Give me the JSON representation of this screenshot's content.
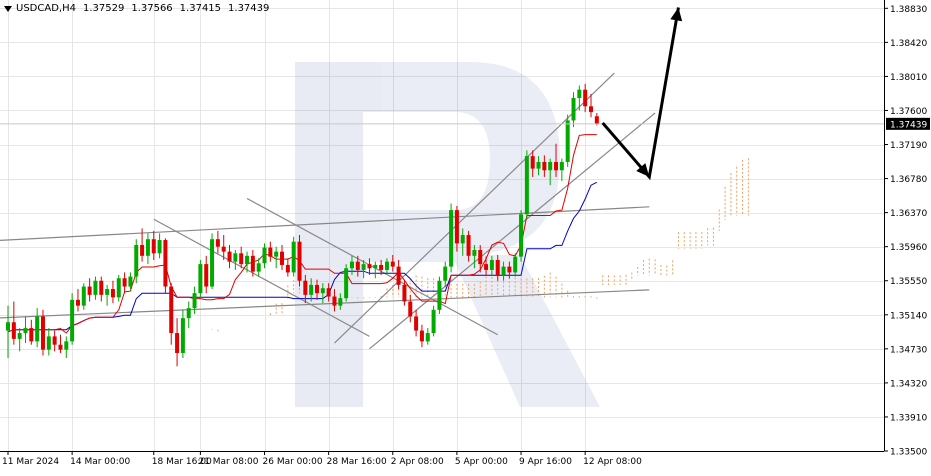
{
  "header": {
    "symbol": "USDCAD,H4",
    "open": "1.37529",
    "high": "1.37566",
    "low": "1.37415",
    "close": "1.37439"
  },
  "chart_data": {
    "type": "candlestick",
    "symbol": "USDCAD",
    "timeframe": "H4",
    "y_ticks": [
      "1.38830",
      "1.38420",
      "1.38010",
      "1.37600",
      "1.37190",
      "1.36780",
      "1.36370",
      "1.35960",
      "1.35550",
      "1.35140",
      "1.34730",
      "1.34320",
      "1.33910",
      "1.33500"
    ],
    "ylim": [
      1.335,
      1.3893
    ],
    "x_tick_labels": [
      "11 Mar 2024",
      "14 Mar 00:00",
      "18 Mar 16:00",
      "21 Mar 08:00",
      "26 Mar 00:00",
      "28 Mar 16:00",
      "2 Apr 08:00",
      "5 Apr 00:00",
      "9 Apr 16:00",
      "12 Apr 08:00"
    ],
    "x_tick_index": [
      0,
      11,
      25,
      33,
      44,
      55,
      66,
      77,
      88,
      99
    ],
    "current_price": "1.37439",
    "current_price_value": 1.37439,
    "candles": [
      [
        1.3495,
        1.3525,
        1.3462,
        1.3505
      ],
      [
        1.3505,
        1.353,
        1.3478,
        1.3485
      ],
      [
        1.3485,
        1.3498,
        1.347,
        1.3492
      ],
      [
        1.3492,
        1.3512,
        1.348,
        1.3498
      ],
      [
        1.3498,
        1.3508,
        1.3478,
        1.3482
      ],
      [
        1.3482,
        1.3522,
        1.3475,
        1.3512
      ],
      [
        1.3512,
        1.352,
        1.3465,
        1.3472
      ],
      [
        1.3472,
        1.3498,
        1.3465,
        1.3488
      ],
      [
        1.3488,
        1.3495,
        1.347,
        1.3478
      ],
      [
        1.3478,
        1.349,
        1.3468,
        1.3472
      ],
      [
        1.3472,
        1.3488,
        1.3462,
        1.3482
      ],
      [
        1.3482,
        1.354,
        1.3478,
        1.3532
      ],
      [
        1.3532,
        1.3545,
        1.3518,
        1.3525
      ],
      [
        1.3525,
        1.3552,
        1.352,
        1.3548
      ],
      [
        1.3548,
        1.3558,
        1.353,
        1.3538
      ],
      [
        1.3538,
        1.356,
        1.3532,
        1.3555
      ],
      [
        1.3555,
        1.356,
        1.353,
        1.3538
      ],
      [
        1.3538,
        1.355,
        1.3525,
        1.3545
      ],
      [
        1.3545,
        1.3555,
        1.3528,
        1.3535
      ],
      [
        1.3535,
        1.3562,
        1.353,
        1.3558
      ],
      [
        1.3558,
        1.3565,
        1.354,
        1.3548
      ],
      [
        1.3548,
        1.3565,
        1.3545,
        1.356
      ],
      [
        1.356,
        1.3605,
        1.3552,
        1.3598
      ],
      [
        1.3598,
        1.3618,
        1.3578,
        1.3585
      ],
      [
        1.3585,
        1.3612,
        1.3575,
        1.3605
      ],
      [
        1.3605,
        1.3615,
        1.358,
        1.3588
      ],
      [
        1.3588,
        1.3612,
        1.3582,
        1.3604
      ],
      [
        1.3604,
        1.3606,
        1.354,
        1.3548
      ],
      [
        1.3548,
        1.3552,
        1.3478,
        1.3492
      ],
      [
        1.3492,
        1.351,
        1.3452,
        1.3468
      ],
      [
        1.3468,
        1.352,
        1.3462,
        1.351
      ],
      [
        1.351,
        1.353,
        1.3498,
        1.3522
      ],
      [
        1.3522,
        1.3548,
        1.3515,
        1.354
      ],
      [
        1.354,
        1.358,
        1.3535,
        1.3575
      ],
      [
        1.3575,
        1.3585,
        1.354,
        1.3548
      ],
      [
        1.3548,
        1.3612,
        1.3545,
        1.3605
      ],
      [
        1.3605,
        1.3615,
        1.3588,
        1.3596
      ],
      [
        1.3596,
        1.361,
        1.358,
        1.359
      ],
      [
        1.359,
        1.3598,
        1.357,
        1.3578
      ],
      [
        1.3578,
        1.3592,
        1.3568,
        1.3588
      ],
      [
        1.3588,
        1.3596,
        1.357,
        1.3575
      ],
      [
        1.3575,
        1.359,
        1.3565,
        1.3585
      ],
      [
        1.3585,
        1.3592,
        1.356,
        1.3566
      ],
      [
        1.3566,
        1.3582,
        1.356,
        1.3576
      ],
      [
        1.3576,
        1.36,
        1.357,
        1.3595
      ],
      [
        1.3595,
        1.3602,
        1.3578,
        1.3584
      ],
      [
        1.3584,
        1.3596,
        1.357,
        1.359
      ],
      [
        1.359,
        1.3598,
        1.3568,
        1.3574
      ],
      [
        1.3574,
        1.3582,
        1.356,
        1.3565
      ],
      [
        1.3565,
        1.3608,
        1.356,
        1.3602
      ],
      [
        1.3602,
        1.361,
        1.3548,
        1.3555
      ],
      [
        1.3555,
        1.3562,
        1.3528,
        1.3538
      ],
      [
        1.3538,
        1.3558,
        1.353,
        1.355
      ],
      [
        1.355,
        1.3556,
        1.3532,
        1.354
      ],
      [
        1.354,
        1.3552,
        1.3528,
        1.3546
      ],
      [
        1.3546,
        1.3552,
        1.353,
        1.3536
      ],
      [
        1.3536,
        1.3545,
        1.3518,
        1.3525
      ],
      [
        1.3525,
        1.354,
        1.352,
        1.3534
      ],
      [
        1.3534,
        1.3575,
        1.353,
        1.357
      ],
      [
        1.357,
        1.3585,
        1.3562,
        1.3578
      ],
      [
        1.3578,
        1.3585,
        1.356,
        1.3568
      ],
      [
        1.3568,
        1.358,
        1.3558,
        1.3575
      ],
      [
        1.3575,
        1.3582,
        1.3562,
        1.357
      ],
      [
        1.357,
        1.3578,
        1.3558,
        1.3574
      ],
      [
        1.3574,
        1.358,
        1.3562,
        1.3568
      ],
      [
        1.3568,
        1.3582,
        1.3564,
        1.3578
      ],
      [
        1.3578,
        1.3586,
        1.3566,
        1.3572
      ],
      [
        1.3572,
        1.358,
        1.3545,
        1.355
      ],
      [
        1.355,
        1.3556,
        1.3525,
        1.353
      ],
      [
        1.353,
        1.3538,
        1.3505,
        1.3512
      ],
      [
        1.3512,
        1.352,
        1.3488,
        1.3495
      ],
      [
        1.3495,
        1.3502,
        1.3475,
        1.3482
      ],
      [
        1.3482,
        1.3498,
        1.3478,
        1.3492
      ],
      [
        1.3492,
        1.3525,
        1.3488,
        1.352
      ],
      [
        1.352,
        1.356,
        1.3515,
        1.3555
      ],
      [
        1.3555,
        1.3578,
        1.3548,
        1.3572
      ],
      [
        1.3572,
        1.3648,
        1.3565,
        1.364
      ],
      [
        1.364,
        1.3645,
        1.359,
        1.36
      ],
      [
        1.36,
        1.3618,
        1.3585,
        1.361
      ],
      [
        1.361,
        1.3615,
        1.3578,
        1.3585
      ],
      [
        1.3585,
        1.3598,
        1.357,
        1.3592
      ],
      [
        1.3592,
        1.3598,
        1.3565,
        1.3575
      ],
      [
        1.3575,
        1.3584,
        1.3562,
        1.3568
      ],
      [
        1.3568,
        1.3585,
        1.3562,
        1.358
      ],
      [
        1.358,
        1.3586,
        1.3555,
        1.3562
      ],
      [
        1.3562,
        1.3578,
        1.3555,
        1.3572
      ],
      [
        1.3572,
        1.3578,
        1.3558,
        1.3565
      ],
      [
        1.3565,
        1.3588,
        1.356,
        1.3584
      ],
      [
        1.3584,
        1.364,
        1.3578,
        1.3635
      ],
      [
        1.3635,
        1.3712,
        1.363,
        1.3705
      ],
      [
        1.3705,
        1.3712,
        1.368,
        1.369
      ],
      [
        1.369,
        1.3705,
        1.3682,
        1.3698
      ],
      [
        1.3698,
        1.3706,
        1.368,
        1.3688
      ],
      [
        1.3688,
        1.3702,
        1.367,
        1.3698
      ],
      [
        1.3698,
        1.372,
        1.368,
        1.3688
      ],
      [
        1.3688,
        1.3702,
        1.3675,
        1.3698
      ],
      [
        1.3698,
        1.3755,
        1.3692,
        1.3748
      ],
      [
        1.3748,
        1.3782,
        1.374,
        1.3775
      ],
      [
        1.3775,
        1.379,
        1.376,
        1.3785
      ],
      [
        1.3785,
        1.3792,
        1.3758,
        1.3765
      ],
      [
        1.3765,
        1.378,
        1.3752,
        1.3758
      ],
      [
        1.3753,
        1.3757,
        1.3742,
        1.3744
      ]
    ],
    "series": [
      {
        "name": "tenkan",
        "color": "#e00000"
      },
      {
        "name": "kijun",
        "color": "#0000cc"
      },
      {
        "name": "cloud",
        "color": "#f0a060"
      }
    ],
    "trendlines": [
      {
        "from": [
          -14,
          1.3599
        ],
        "to": [
          110,
          1.3644
        ]
      },
      {
        "from": [
          -14,
          1.35065
        ],
        "to": [
          110,
          1.3544
        ]
      },
      {
        "from": [
          56,
          1.348
        ],
        "to": [
          104,
          1.3805
        ]
      },
      {
        "from": [
          62,
          1.3473
        ],
        "to": [
          111,
          1.3757
        ]
      },
      {
        "from": [
          25,
          1.3629
        ],
        "to": [
          62,
          1.3488
        ]
      },
      {
        "from": [
          41,
          1.3654
        ],
        "to": [
          84,
          1.349
        ]
      }
    ],
    "forecast_arrow": [
      [
        102,
        1.3745
      ],
      [
        110,
        1.368
      ],
      [
        115,
        1.3884
      ]
    ],
    "watermark": "R",
    "colors": {
      "bull": "#00aa00",
      "bear": "#e00000",
      "wick": "#000000",
      "trendline": "#888888",
      "grid": "#e6e6e6",
      "watermark": "#2f4a9c",
      "price_label_bg": "#000000"
    }
  }
}
